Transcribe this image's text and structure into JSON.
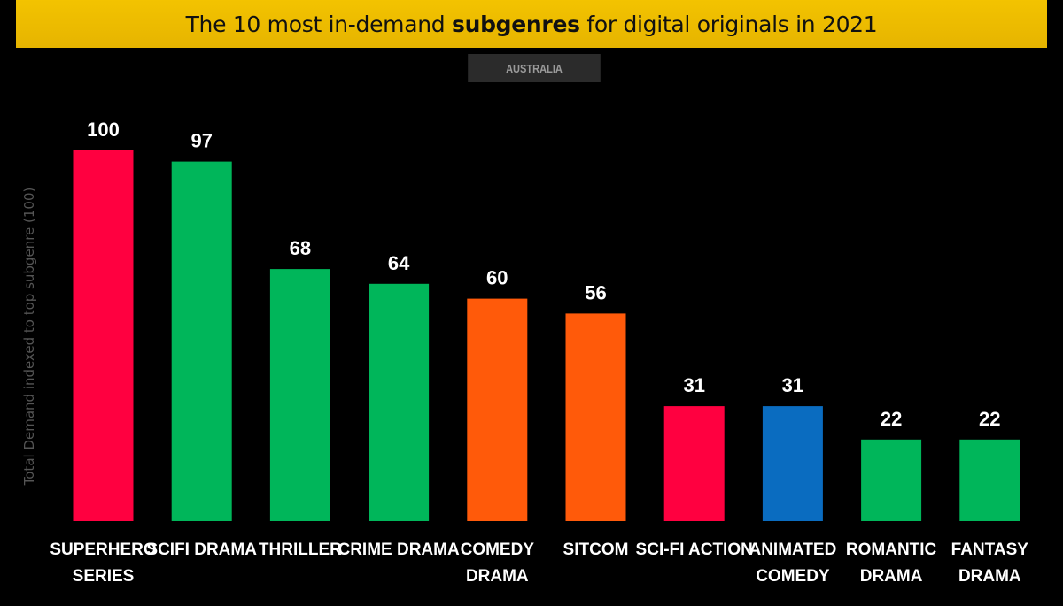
{
  "header": {
    "title_before": "The 10 most in-demand ",
    "title_bold": "subgenres",
    "title_after": " for digital originals in 2021",
    "region": "AUSTRALIA"
  },
  "chart_data": {
    "type": "bar",
    "title": "The 10 most in-demand subgenres for digital originals in 2021",
    "subtitle": "AUSTRALIA",
    "ylabel": "Total Demand indexed to top subgenre (100)",
    "xlabel": "",
    "ylim": [
      0,
      100
    ],
    "grid": false,
    "categories": [
      [
        "SUPERHERO",
        "SERIES"
      ],
      [
        "SCIFI DRAMA"
      ],
      [
        "THRILLER"
      ],
      [
        "CRIME DRAMA"
      ],
      [
        "COMEDY",
        "DRAMA"
      ],
      [
        "SITCOM"
      ],
      [
        "SCI-FI ACTION"
      ],
      [
        "ANIMATED",
        "COMEDY"
      ],
      [
        "ROMANTIC",
        "DRAMA"
      ],
      [
        "FANTASY",
        "DRAMA"
      ]
    ],
    "values": [
      100,
      97,
      68,
      64,
      60,
      56,
      31,
      31,
      22,
      22
    ],
    "data_labels": [
      "100",
      "97",
      "68",
      "64",
      "60",
      "56",
      "31",
      "31",
      "22",
      "22"
    ],
    "colors": [
      "#ff0040",
      "#00b65a",
      "#00b65a",
      "#00b65a",
      "#ff5a0a",
      "#ff5a0a",
      "#ff0040",
      "#0a6cc0",
      "#00b65a",
      "#00b65a"
    ]
  },
  "colors": {
    "background": "#000000",
    "title_bar": "#f3c300",
    "red": "#ff0040",
    "green": "#00b65a",
    "orange": "#ff5a0a",
    "blue": "#0a6cc0"
  }
}
